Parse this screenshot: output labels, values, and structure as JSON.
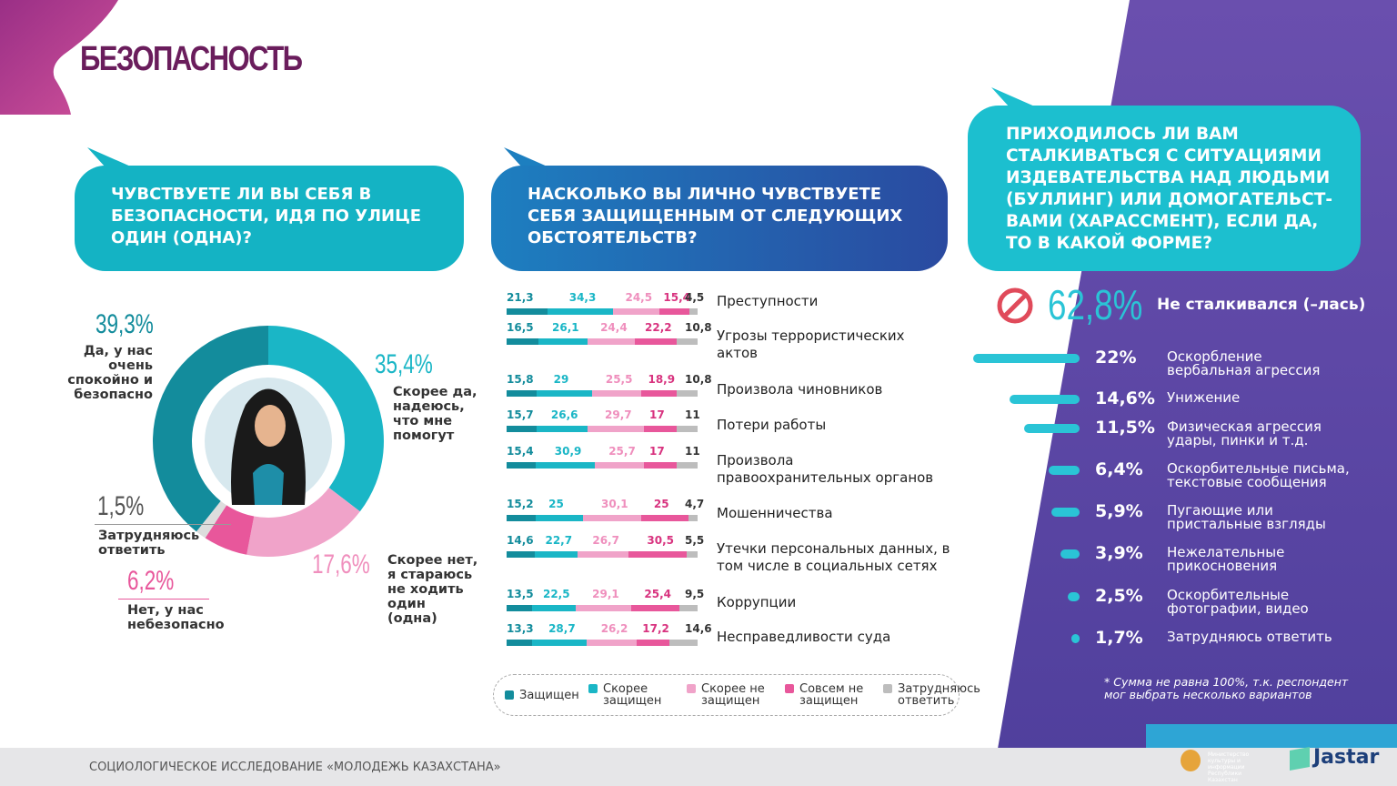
{
  "page": {
    "title": "БЕЗОПАСНОСТЬ",
    "footer": "СОЦИОЛОГИЧЕСКОЕ ИССЛЕДОВАНИЕ «МОЛОДЕЖЬ КАЗАХСТАНА»",
    "logo_ministry": "Министерство культуры и информации Республики Казахстан",
    "logo_jastar": "Jastar"
  },
  "colors": {
    "dark_teal": "#138c9c",
    "teal": "#1ab6c6",
    "light_pink": "#f0a3c9",
    "pink": "#e8579b",
    "gray": "#bdbdbd",
    "title": "#6a1d5c",
    "purple": "#5b3fa0"
  },
  "chart_data": [
    {
      "type": "pie",
      "donut": true,
      "title": "ЧУВСТВУЕТЕ ЛИ ВЫ СЕБЯ В БЕЗОПАСНОСТИ, ИДЯ ПО УЛИЦЕ ОДИН (ОДНА)?",
      "slices": [
        {
          "pct": "35,4%",
          "value": 35.4,
          "label": "Скорее да, надеюсь, что мне помогут",
          "color": "#1ab6c6"
        },
        {
          "pct": "17,6%",
          "value": 17.6,
          "label": "Скорее нет, я стараюсь не ходить один (одна)",
          "color": "#f0a3c9"
        },
        {
          "pct": "6,2%",
          "value": 6.2,
          "label": "Нет, у нас небезопасно",
          "color": "#e8579b"
        },
        {
          "pct": "1,5%",
          "value": 1.5,
          "label": "Затрудняюсь ответить",
          "color": "#dddddd"
        },
        {
          "pct": "39,3%",
          "value": 39.3,
          "label": "Да, у нас очень спокойно и безопасно",
          "color": "#138c9c"
        }
      ]
    },
    {
      "type": "bar",
      "stacked": true,
      "title": "НАСКОЛЬКО ВЫ ЛИЧНО ЧУВСТВУЕТЕ СЕБЯ ЗАЩИЩЕННЫМ ОТ СЛЕДУЮЩИХ ОБСТОЯТЕЛЬСТВ?",
      "legend": [
        "Защищен",
        "Скорее защищен",
        "Скорее не защищен",
        "Совсем не защищен",
        "Затрудняюсь ответить"
      ],
      "series_colors": [
        "#138c9c",
        "#1ab6c6",
        "#f0a3c9",
        "#e8579b",
        "#bdbdbd"
      ],
      "categories": [
        "Преступности",
        "Угрозы террористических актов",
        "Произвола чиновников",
        "Потери работы",
        "Произвола правоохранительных органов",
        "Мошенничества",
        "Утечки персональных данных, в том числе в социальных сетях",
        "Коррупции",
        "Несправедливости суда"
      ],
      "rows": [
        [
          21.3,
          34.3,
          24.5,
          15.4,
          4.5
        ],
        [
          16.5,
          26.1,
          24.4,
          22.2,
          10.8
        ],
        [
          15.8,
          29,
          25.5,
          18.9,
          10.8
        ],
        [
          15.7,
          26.6,
          29.7,
          17,
          11
        ],
        [
          15.4,
          30.9,
          25.7,
          17,
          11
        ],
        [
          15.2,
          25,
          30.1,
          25,
          4.7
        ],
        [
          14.6,
          22.7,
          26.7,
          30.5,
          5.5
        ],
        [
          13.5,
          22.5,
          29.1,
          25.4,
          9.5
        ],
        [
          13.3,
          28.7,
          26.2,
          17.2,
          14.6
        ]
      ]
    },
    {
      "type": "bar",
      "orientation": "horizontal",
      "title": "ПРИХОДИЛОСЬ ЛИ ВАМ СТАЛКИВАТЬСЯ С СИТУАЦИЯМИ ИЗДЕВАТЕЛЬСТВА НАД ЛЮДЬМИ (БУЛЛИНГ) ИЛИ ДОМОГАТЕЛЬСТ-ВАМИ (ХАРАССМЕНТ), ЕСЛИ ДА, ТО В КАКОЙ ФОРМЕ?",
      "headline": {
        "pct": "62,8%",
        "value": 62.8,
        "label": "Не сталкивался (–лась)"
      },
      "items": [
        {
          "pct": "22%",
          "value": 22,
          "label": "Оскорбление вербальная агрессия"
        },
        {
          "pct": "14,6%",
          "value": 14.6,
          "label": "Унижение"
        },
        {
          "pct": "11,5%",
          "value": 11.5,
          "label": "Физическая агрессия удары, пинки и т.д."
        },
        {
          "pct": "6,4%",
          "value": 6.4,
          "label": "Оскорбительные письма, текстовые сообщения"
        },
        {
          "pct": "5,9%",
          "value": 5.9,
          "label": "Пугающие или пристальные взгляды"
        },
        {
          "pct": "3,9%",
          "value": 3.9,
          "label": "Нежелательные прикосновения"
        },
        {
          "pct": "2,5%",
          "value": 2.5,
          "label": "Оскорбительные фотографии, видео"
        },
        {
          "pct": "1,7%",
          "value": 1.7,
          "label": "Затрудняюсь ответить"
        }
      ],
      "note": "* Сумма не равна 100%, т.к. респондент мог выбрать несколько вариантов"
    }
  ]
}
